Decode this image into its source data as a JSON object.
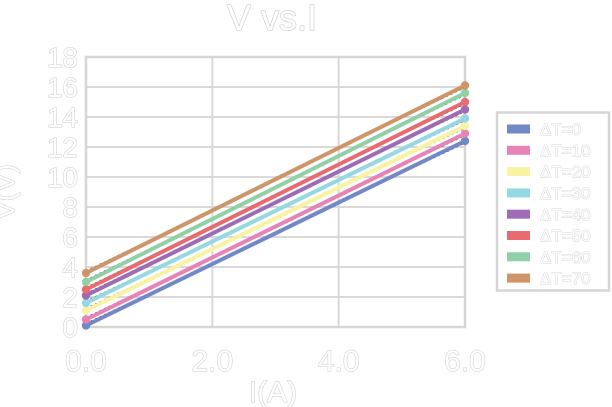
{
  "window": {
    "background": "#ffffff"
  },
  "chart_data": {
    "type": "line",
    "title": "V vs.I",
    "xlabel": "I(A)",
    "ylabel": "V(V)",
    "xlim": [
      0,
      6
    ],
    "ylim": [
      0,
      18
    ],
    "grid": true,
    "legend_position": "right",
    "x": [
      0,
      6
    ],
    "xticks": [
      {
        "label": "0.0",
        "value": 0
      },
      {
        "label": "2.0",
        "value": 2
      },
      {
        "label": "4.0",
        "value": 4
      },
      {
        "label": "6.0",
        "value": 6
      }
    ],
    "yticks": [
      {
        "label": "0",
        "value": 0
      },
      {
        "label": "2",
        "value": 2
      },
      {
        "label": "4",
        "value": 4
      },
      {
        "label": "6",
        "value": 6
      },
      {
        "label": "8",
        "value": 8
      },
      {
        "label": "10",
        "value": 10
      },
      {
        "label": "12",
        "value": 12
      },
      {
        "label": "14",
        "value": 14
      },
      {
        "label": "16",
        "value": 16
      },
      {
        "label": "18",
        "value": 18
      }
    ],
    "series": [
      {
        "name": "ΔT=0",
        "color": "#7288c7",
        "values": [
          0.1,
          12.4
        ]
      },
      {
        "name": "ΔT=10",
        "color": "#e783b6",
        "values": [
          0.5,
          12.9
        ]
      },
      {
        "name": "ΔT=20",
        "color": "#f8f3a2",
        "values": [
          1.1,
          13.4
        ]
      },
      {
        "name": "ΔT=30",
        "color": "#96d8e1",
        "values": [
          1.6,
          13.9
        ]
      },
      {
        "name": "ΔT=40",
        "color": "#9e6cb4",
        "values": [
          2.1,
          14.5
        ]
      },
      {
        "name": "ΔT=50",
        "color": "#e76b70",
        "values": [
          2.5,
          15.0
        ]
      },
      {
        "name": "ΔT=60",
        "color": "#8fd0a6",
        "values": [
          3.0,
          15.6
        ]
      },
      {
        "name": "ΔT=70",
        "color": "#cf9468",
        "values": [
          3.6,
          16.1
        ]
      }
    ],
    "trendlines": {
      "show": true,
      "color": "#000000",
      "style": "dotted"
    },
    "style": {
      "grid_color": "#d9d9d9",
      "border_color": "#d6d6d6",
      "text_fill": "#ffffff",
      "text_outline": "#c9c9c9",
      "background": "#ffffff"
    }
  }
}
